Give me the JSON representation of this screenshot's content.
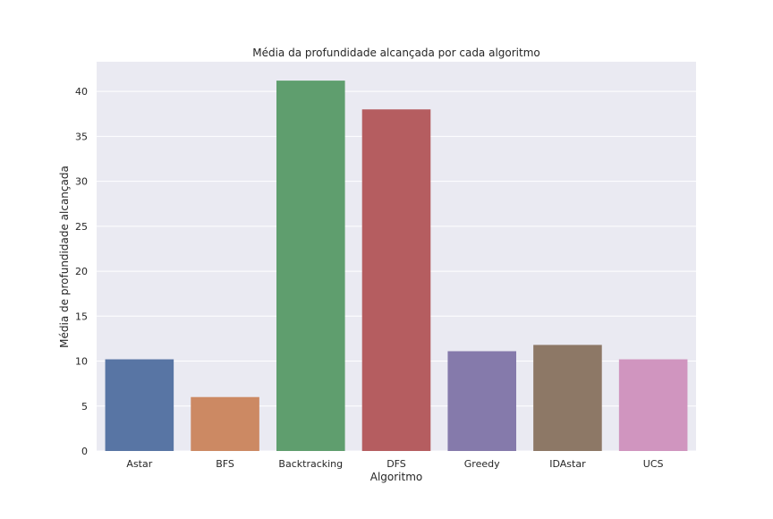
{
  "chart_data": {
    "type": "bar",
    "title": "Média da profundidade alcançada por cada algoritmo",
    "xlabel": "Algoritmo",
    "ylabel": "Média de profundidade alcançada",
    "categories": [
      "Astar",
      "BFS",
      "Backtracking",
      "DFS",
      "Greedy",
      "IDAstar",
      "UCS"
    ],
    "values": [
      10.2,
      6.0,
      41.2,
      38.0,
      11.1,
      11.8,
      10.2
    ],
    "colors": [
      "#5875a4",
      "#cc8963",
      "#5f9e6e",
      "#b55d60",
      "#857aab",
      "#8d7866",
      "#d095bf"
    ],
    "ylim": [
      0,
      43.3
    ],
    "yticks": [
      0,
      5,
      10,
      15,
      20,
      25,
      30,
      35,
      40
    ],
    "grid": true,
    "legend": "none",
    "style": {
      "background": "#eaeaf2",
      "grid_color": "#ffffff"
    }
  }
}
